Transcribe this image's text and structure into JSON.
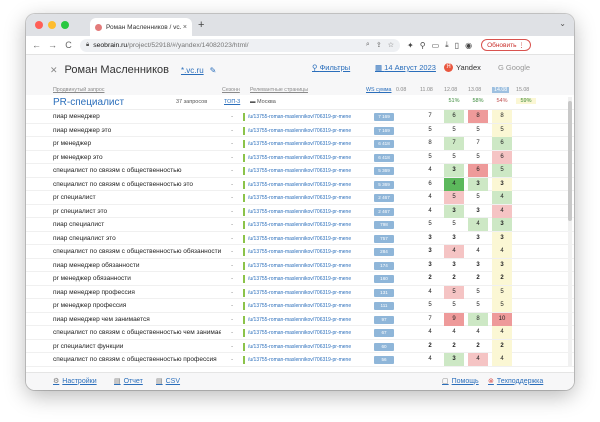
{
  "browser": {
    "tab_title": "Роман Масленников / vc.ru / ...",
    "tab_close": "×",
    "new_tab": "+",
    "tab_menu": "⌄",
    "back": "←",
    "forward": "→",
    "reload": "C",
    "url_host": "seobrain.ru",
    "url_path": "/project/52918/#/yandex/14082023/html/",
    "update_label": "Обновить"
  },
  "app": {
    "user_name": "Роман Масленников",
    "project": "*.vc.ru",
    "filters_label": "Фильтры",
    "date_label": "14 Август 2023",
    "engine_yandex": "Yandex",
    "engine_google": "Google",
    "links": {
      "promo": "Продвинутый запрос",
      "scheme": "Сезонн",
      "related": "Релевантные страницы",
      "ws_label": "WS сумма",
      "d1": "0.08",
      "d2": "11.08",
      "d3": "12.08",
      "d4": "13.08",
      "d5": "14.08",
      "d6": "15.08"
    }
  },
  "group": {
    "title": "PR-специалист",
    "queries": "37 запросов",
    "top3": "ТОП-3",
    "region": "Москва",
    "pct": [
      "51%",
      "58%",
      "54%",
      "59%"
    ]
  },
  "colors": {
    "green_strong": "#5cb85c",
    "green_light": "#cde8c5",
    "red_light": "#f5c4c4",
    "red_mid": "#ee9a9a",
    "yellow_col": "#fbf7d4",
    "freq_bg": "#8fb6d9"
  },
  "rows": [
    {
      "kw": "пиар менеджер",
      "link": "/u/13755-roman-maslennikov/706319-pr-mene",
      "freq": "7 169",
      "pos": [
        "7",
        "6",
        "8",
        "8"
      ]
    },
    {
      "kw": "пиар менеджер это",
      "link": "/u/13755-roman-maslennikov/706319-pr-mene",
      "freq": "7 169",
      "pos": [
        "5",
        "5",
        "5",
        "5"
      ]
    },
    {
      "kw": "pr менеджер",
      "link": "/u/13755-roman-maslennikov/706319-pr-mene",
      "freq": "6 418",
      "pos": [
        "8",
        "7",
        "7",
        "6"
      ]
    },
    {
      "kw": "pr менеджер это",
      "link": "/u/13755-roman-maslennikov/706319-pr-mene",
      "freq": "6 418",
      "pos": [
        "5",
        "5",
        "5",
        "6"
      ]
    },
    {
      "kw": "специалист по связям с общественностью",
      "link": "/u/13755-roman-maslennikov/706319-pr-mene",
      "freq": "5 369",
      "pos": [
        "4",
        "3",
        "6",
        "5"
      ]
    },
    {
      "kw": "специалист по связям с общественностью это",
      "link": "/u/13755-roman-maslennikov/706319-pr-mene",
      "freq": "5 369",
      "pos": [
        "6",
        "4",
        "3",
        "3"
      ]
    },
    {
      "kw": "pr специалист",
      "link": "/u/13755-roman-maslennikov/706319-pr-mene",
      "freq": "2 467",
      "pos": [
        "4",
        "5",
        "5",
        "4"
      ]
    },
    {
      "kw": "pr специалист это",
      "link": "/u/13755-roman-maslennikov/706319-pr-mene",
      "freq": "2 467",
      "pos": [
        "4",
        "3",
        "3",
        "4"
      ]
    },
    {
      "kw": "пиар специалист",
      "link": "/u/13755-roman-maslennikov/706319-pr-mene",
      "freq": "798",
      "pos": [
        "5",
        "5",
        "4",
        "3"
      ]
    },
    {
      "kw": "пиар специалист это",
      "link": "/u/13755-roman-maslennikov/706319-pr-mene",
      "freq": "757",
      "pos": [
        "3",
        "3",
        "3",
        "3"
      ]
    },
    {
      "kw": "специалист по связям с общественностью обязанности",
      "link": "/u/13755-roman-maslennikov/706319-pr-mene",
      "freq": "284",
      "pos": [
        "3",
        "4",
        "4",
        "4"
      ]
    },
    {
      "kw": "пиар менеджер обязанности",
      "link": "/u/13755-roman-maslennikov/706319-pr-mene",
      "freq": "174",
      "pos": [
        "3",
        "3",
        "3",
        "3"
      ]
    },
    {
      "kw": "pr менеджер обязанности",
      "link": "/u/13755-roman-maslennikov/706319-pr-mene",
      "freq": "160",
      "pos": [
        "2",
        "2",
        "2",
        "2"
      ]
    },
    {
      "kw": "пиар менеджер профессия",
      "link": "/u/13755-roman-maslennikov/706319-pr-mene",
      "freq": "131",
      "pos": [
        "4",
        "5",
        "5",
        "5"
      ]
    },
    {
      "kw": "pr менеджер профессия",
      "link": "/u/13755-roman-maslennikov/706319-pr-mene",
      "freq": "111",
      "pos": [
        "5",
        "5",
        "5",
        "5"
      ]
    },
    {
      "kw": "пиар менеджер чем занимается",
      "link": "/u/13755-roman-maslennikov/706319-pr-mene",
      "freq": "97",
      "pos": [
        "7",
        "9",
        "8",
        "10"
      ]
    },
    {
      "kw": "специалист по связям с общественностью чем занимается",
      "link": "/u/13755-roman-maslennikov/706319-pr-mene",
      "freq": "67",
      "pos": [
        "4",
        "4",
        "4",
        "4"
      ]
    },
    {
      "kw": "pr специалист функции",
      "link": "/u/13755-roman-maslennikov/706319-pr-mene",
      "freq": "60",
      "pos": [
        "2",
        "2",
        "2",
        "2"
      ]
    },
    {
      "kw": "специалист по связям с общественностью профессия",
      "link": "/u/13755-roman-maslennikov/706319-pr-mene",
      "freq": "56",
      "pos": [
        "4",
        "3",
        "4",
        "4"
      ]
    }
  ],
  "footer": {
    "settings": "Настройки",
    "report": "Отчет",
    "csv": "CSV",
    "help": "Помощь",
    "support": "Техподдержка"
  }
}
